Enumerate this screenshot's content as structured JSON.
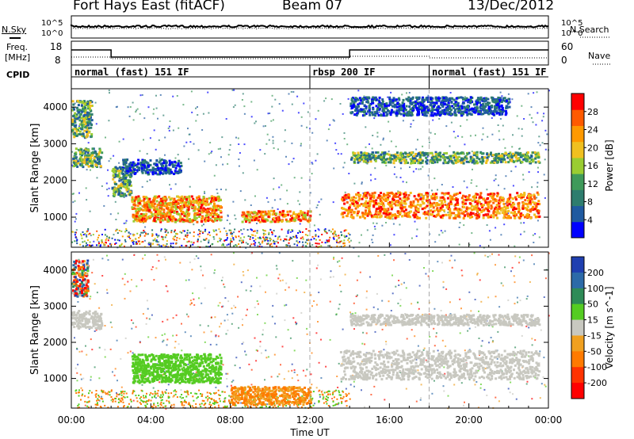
{
  "header": {
    "title": "Fort Hays East (fitACF)",
    "beam": "Beam 07",
    "date": "13/Dec/2012"
  },
  "top_labels": {
    "nsky": "N.Sky",
    "nsearch": "N.Search",
    "freq": "Freq.",
    "mhz": "[MHz]",
    "nave": "Nave",
    "cpid": "CPID",
    "pow_hi": "10^5",
    "pow_lo": "10^0"
  },
  "cpid_segments": [
    {
      "label": "normal (fast) 151 IF",
      "start_hour": 0
    },
    {
      "label": "rbsp 200 IF",
      "start_hour": 12
    },
    {
      "label": "normal (fast) 151 IF",
      "start_hour": 18
    }
  ],
  "freq_axis": {
    "left_ticks": [
      "18",
      "8"
    ],
    "right_ticks": [
      "60",
      "0"
    ]
  },
  "colors": {
    "power": [
      "#0000ff",
      "#1f5aa0",
      "#2e7d6e",
      "#3f9a5a",
      "#9acd32",
      "#f0c020",
      "#ff9900",
      "#ff5a00",
      "#ff0000"
    ],
    "velocity": [
      "#1f3fb0",
      "#2c6aa8",
      "#2e8b57",
      "#55cc22",
      "#c8c8c0",
      "#f0a020",
      "#ff7a00",
      "#ff3300",
      "#ff0000"
    ]
  },
  "chart_data": [
    {
      "type": "heatmap",
      "title": "Power",
      "xlabel": "",
      "ylabel": "Slant Range [km]",
      "xlim": [
        0,
        24
      ],
      "ylim": [
        180,
        4500
      ],
      "x_ticks": [
        "00:00",
        "04:00",
        "08:00",
        "12:00",
        "16:00",
        "20:00",
        "00:00"
      ],
      "y_ticks": [
        1000,
        2000,
        3000,
        4000
      ],
      "colorbar": {
        "label": "Power [dB]",
        "ticks": [
          4,
          8,
          12,
          16,
          20,
          24,
          28
        ]
      },
      "echo_regions": [
        {
          "t0": 0.0,
          "t1": 1.0,
          "r0": 3200,
          "r1": 4200,
          "level": "medium"
        },
        {
          "t0": 0.0,
          "t1": 1.5,
          "r0": 2400,
          "r1": 2900,
          "level": "medium"
        },
        {
          "t0": 2.0,
          "t1": 3.0,
          "r0": 1600,
          "r1": 2400,
          "level": "medium"
        },
        {
          "t0": 2.5,
          "t1": 5.5,
          "r0": 2200,
          "r1": 2600,
          "level": "low"
        },
        {
          "t0": 3.0,
          "t1": 7.5,
          "r0": 900,
          "r1": 1600,
          "level": "high"
        },
        {
          "t0": 8.5,
          "t1": 12.0,
          "r0": 900,
          "r1": 1200,
          "level": "high"
        },
        {
          "t0": 13.5,
          "t1": 23.5,
          "r0": 1000,
          "r1": 1700,
          "level": "very high"
        },
        {
          "t0": 14.0,
          "t1": 23.5,
          "r0": 2500,
          "r1": 2800,
          "level": "medium"
        },
        {
          "t0": 14.0,
          "t1": 22.0,
          "r0": 3800,
          "r1": 4300,
          "level": "low"
        }
      ]
    },
    {
      "type": "heatmap",
      "title": "Velocity",
      "xlabel": "Time UT",
      "ylabel": "Slant Range [km]",
      "xlim": [
        0,
        24
      ],
      "ylim": [
        180,
        4500
      ],
      "x_ticks": [
        "00:00",
        "04:00",
        "08:00",
        "12:00",
        "16:00",
        "20:00",
        "00:00"
      ],
      "y_ticks": [
        1000,
        2000,
        3000,
        4000
      ],
      "colorbar": {
        "label": "Velocity [m s^-1]",
        "ticks": [
          200,
          100,
          50,
          15,
          -15,
          -50,
          -100,
          -200
        ]
      },
      "echo_regions": [
        {
          "t0": 0.0,
          "t1": 0.8,
          "r0": 3300,
          "r1": 4300,
          "value": "-200 to 200"
        },
        {
          "t0": 0.0,
          "t1": 1.5,
          "r0": 2400,
          "r1": 2900,
          "value": "-15 to 15"
        },
        {
          "t0": 3.0,
          "t1": 7.5,
          "r0": 900,
          "r1": 1700,
          "value": "15 to 50"
        },
        {
          "t0": 8.0,
          "t1": 12.0,
          "r0": 300,
          "r1": 800,
          "value": "-50 to -15"
        },
        {
          "t0": 13.5,
          "t1": 23.5,
          "r0": 1000,
          "r1": 1800,
          "value": "-15 to 15"
        },
        {
          "t0": 14.0,
          "t1": 23.5,
          "r0": 2500,
          "r1": 2800,
          "value": "-15 to 15"
        }
      ]
    }
  ]
}
